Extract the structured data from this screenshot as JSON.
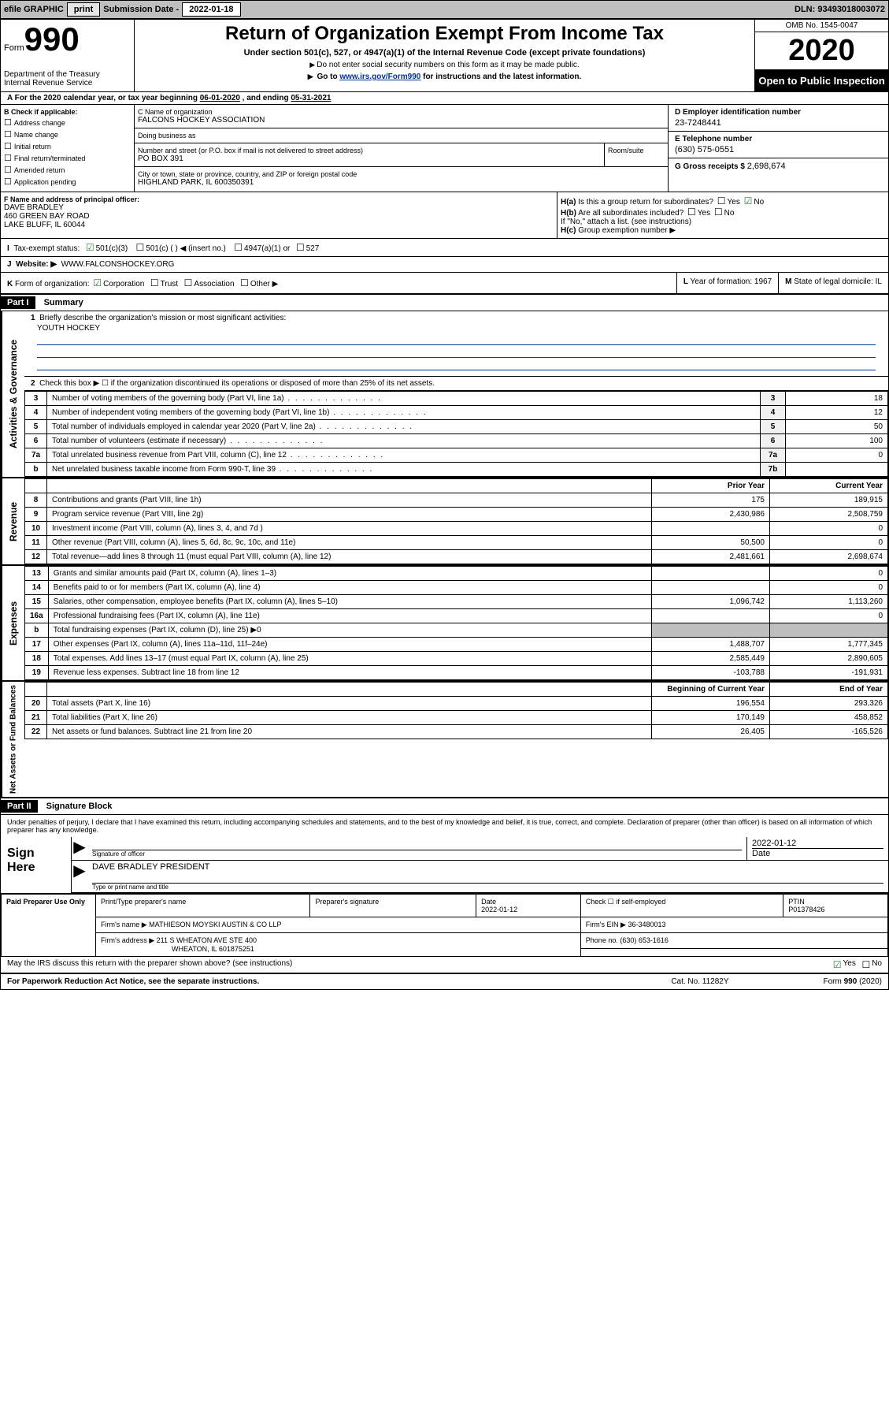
{
  "topbar": {
    "efile_label": "efile GRAPHIC",
    "print_btn": "print",
    "submission_label": "Submission Date - ",
    "submission_date": "2022-01-18",
    "dln_label": "DLN: ",
    "dln": "93493018003072"
  },
  "header": {
    "form_word": "Form",
    "form_number": "990",
    "dept": "Department of the Treasury\nInternal Revenue Service",
    "title": "Return of Organization Exempt From Income Tax",
    "subtitle": "Under section 501(c), 527, or 4947(a)(1) of the Internal Revenue Code (except private foundations)",
    "note1": "Do not enter social security numbers on this form as it may be made public.",
    "note2_pre": "Go to ",
    "note2_link": "www.irs.gov/Form990",
    "note2_post": " for instructions and the latest information.",
    "omb": "OMB No. 1545-0047",
    "year": "2020",
    "open_public": "Open to Public Inspection"
  },
  "period": {
    "text_pre": "For the 2020 calendar year, or tax year beginning ",
    "begin": "06-01-2020",
    "text_mid": " , and ending ",
    "end": "05-31-2021"
  },
  "boxB": {
    "header": "B Check if applicable:",
    "items": [
      "Address change",
      "Name change",
      "Initial return",
      "Final return/terminated",
      "Amended return",
      "Application pending"
    ]
  },
  "boxC": {
    "name_label": "C Name of organization",
    "name": "FALCONS HOCKEY ASSOCIATION",
    "dba_label": "Doing business as",
    "dba": "",
    "street_label": "Number and street (or P.O. box if mail is not delivered to street address)",
    "street": "PO BOX 391",
    "room_label": "Room/suite",
    "room": "",
    "city_label": "City or town, state or province, country, and ZIP or foreign postal code",
    "city": "HIGHLAND PARK, IL  600350391"
  },
  "boxD": {
    "ein_label": "D Employer identification number",
    "ein": "23-7248441",
    "phone_label": "E Telephone number",
    "phone": "(630) 575-0551",
    "gross_label": "G Gross receipts $ ",
    "gross": "2,698,674"
  },
  "boxF": {
    "label": "F Name and address of principal officer:",
    "name": "DAVE BRADLEY",
    "street": "460 GREEN BAY ROAD",
    "city": "LAKE BLUFF, IL  60044"
  },
  "boxH": {
    "ha_label": "H(a)",
    "ha_text": "Is this a group return for subordinates?",
    "ha_yes": "Yes",
    "ha_no": "No",
    "hb_label": "H(b)",
    "hb_text": "Are all subordinates included?",
    "hb_note": "If \"No,\" attach a list. (see instructions)",
    "hc_label": "H(c)",
    "hc_text": "Group exemption number ▶"
  },
  "rowI": {
    "label": "I",
    "text": "Tax-exempt status:",
    "opt1": "501(c)(3)",
    "opt2": "501(c) (   ) ◀ (insert no.)",
    "opt3": "4947(a)(1) or",
    "opt4": "527"
  },
  "rowJ": {
    "label": "J",
    "text": "Website: ▶",
    "value": "WWW.FALCONSHOCKEY.ORG"
  },
  "rowK": {
    "label": "K",
    "text": "Form of organization:",
    "opts": [
      "Corporation",
      "Trust",
      "Association",
      "Other ▶"
    ],
    "l_label": "L",
    "l_text": "Year of formation: ",
    "l_val": "1967",
    "m_label": "M",
    "m_text": "State of legal domicile: ",
    "m_val": "IL"
  },
  "part1": {
    "header": "Part I",
    "title": "Summary",
    "q1_label": "1",
    "q1_text": "Briefly describe the organization's mission or most significant activities:",
    "q1_val": "YOUTH HOCKEY",
    "q2_label": "2",
    "q2_text": "Check this box ▶ ☐  if the organization discontinued its operations or disposed of more than 25% of its net assets."
  },
  "gov_section": "Activities & Governance",
  "gov_rows": [
    {
      "ln": "3",
      "desc": "Number of voting members of the governing body (Part VI, line 1a)",
      "box": "3",
      "val": "18"
    },
    {
      "ln": "4",
      "desc": "Number of independent voting members of the governing body (Part VI, line 1b)",
      "box": "4",
      "val": "12"
    },
    {
      "ln": "5",
      "desc": "Total number of individuals employed in calendar year 2020 (Part V, line 2a)",
      "box": "5",
      "val": "50"
    },
    {
      "ln": "6",
      "desc": "Total number of volunteers (estimate if necessary)",
      "box": "6",
      "val": "100"
    },
    {
      "ln": "7a",
      "desc": "Total unrelated business revenue from Part VIII, column (C), line 12",
      "box": "7a",
      "val": "0"
    },
    {
      "ln": "b",
      "desc": "Net unrelated business taxable income from Form 990-T, line 39",
      "box": "7b",
      "val": ""
    }
  ],
  "rev_section": "Revenue",
  "rev_header": {
    "prior": "Prior Year",
    "current": "Current Year"
  },
  "rev_rows": [
    {
      "ln": "8",
      "desc": "Contributions and grants (Part VIII, line 1h)",
      "prior": "175",
      "current": "189,915"
    },
    {
      "ln": "9",
      "desc": "Program service revenue (Part VIII, line 2g)",
      "prior": "2,430,986",
      "current": "2,508,759"
    },
    {
      "ln": "10",
      "desc": "Investment income (Part VIII, column (A), lines 3, 4, and 7d )",
      "prior": "",
      "current": "0"
    },
    {
      "ln": "11",
      "desc": "Other revenue (Part VIII, column (A), lines 5, 6d, 8c, 9c, 10c, and 11e)",
      "prior": "50,500",
      "current": "0"
    },
    {
      "ln": "12",
      "desc": "Total revenue—add lines 8 through 11 (must equal Part VIII, column (A), line 12)",
      "prior": "2,481,661",
      "current": "2,698,674"
    }
  ],
  "exp_section": "Expenses",
  "exp_rows": [
    {
      "ln": "13",
      "desc": "Grants and similar amounts paid (Part IX, column (A), lines 1–3)",
      "prior": "",
      "current": "0"
    },
    {
      "ln": "14",
      "desc": "Benefits paid to or for members (Part IX, column (A), line 4)",
      "prior": "",
      "current": "0"
    },
    {
      "ln": "15",
      "desc": "Salaries, other compensation, employee benefits (Part IX, column (A), lines 5–10)",
      "prior": "1,096,742",
      "current": "1,113,260"
    },
    {
      "ln": "16a",
      "desc": "Professional fundraising fees (Part IX, column (A), line 11e)",
      "prior": "",
      "current": "0"
    },
    {
      "ln": "b",
      "desc": "Total fundraising expenses (Part IX, column (D), line 25) ▶0",
      "prior": "",
      "current": "",
      "grey": true
    },
    {
      "ln": "17",
      "desc": "Other expenses (Part IX, column (A), lines 11a–11d, 11f–24e)",
      "prior": "1,488,707",
      "current": "1,777,345"
    },
    {
      "ln": "18",
      "desc": "Total expenses. Add lines 13–17 (must equal Part IX, column (A), line 25)",
      "prior": "2,585,449",
      "current": "2,890,605"
    },
    {
      "ln": "19",
      "desc": "Revenue less expenses. Subtract line 18 from line 12",
      "prior": "-103,788",
      "current": "-191,931"
    }
  ],
  "net_section": "Net Assets or Fund Balances",
  "net_header": {
    "begin": "Beginning of Current Year",
    "end": "End of Year"
  },
  "net_rows": [
    {
      "ln": "20",
      "desc": "Total assets (Part X, line 16)",
      "prior": "196,554",
      "current": "293,326"
    },
    {
      "ln": "21",
      "desc": "Total liabilities (Part X, line 26)",
      "prior": "170,149",
      "current": "458,852"
    },
    {
      "ln": "22",
      "desc": "Net assets or fund balances. Subtract line 21 from line 20",
      "prior": "26,405",
      "current": "-165,526"
    }
  ],
  "part2": {
    "header": "Part II",
    "title": "Signature Block",
    "note": "Under penalties of perjury, I declare that I have examined this return, including accompanying schedules and statements, and to the best of my knowledge and belief, it is true, correct, and complete. Declaration of preparer (other than officer) is based on all information of which preparer has any knowledge."
  },
  "sign": {
    "left": "Sign Here",
    "sig_label": "Signature of officer",
    "date_label": "Date",
    "date_val": "2022-01-12",
    "name_val": "DAVE BRADLEY  PRESIDENT",
    "name_label": "Type or print name and title"
  },
  "prep": {
    "left": "Paid Preparer Use Only",
    "col1": "Print/Type preparer's name",
    "col2": "Preparer's signature",
    "col3_label": "Date",
    "col3_val": "2022-01-12",
    "col4_label": "Check ☐ if self-employed",
    "col5_label": "PTIN",
    "col5_val": "P01378426",
    "firm_name_label": "Firm's name    ▶",
    "firm_name": "MATHIESON MOYSKI AUSTIN & CO LLP",
    "firm_ein_label": "Firm's EIN ▶",
    "firm_ein": "36-3480013",
    "firm_addr_label": "Firm's address ▶",
    "firm_addr1": "211 S WHEATON AVE STE 400",
    "firm_addr2": "WHEATON, IL  601875251",
    "phone_label": "Phone no. ",
    "phone": "(630) 653-1616"
  },
  "discuss": {
    "text": "May the IRS discuss this return with the preparer shown above? (see instructions)",
    "yes": "Yes",
    "no": "No"
  },
  "footer": {
    "left": "For Paperwork Reduction Act Notice, see the separate instructions.",
    "mid": "Cat. No. 11282Y",
    "right_pre": "Form ",
    "right_form": "990",
    "right_post": " (2020)"
  }
}
